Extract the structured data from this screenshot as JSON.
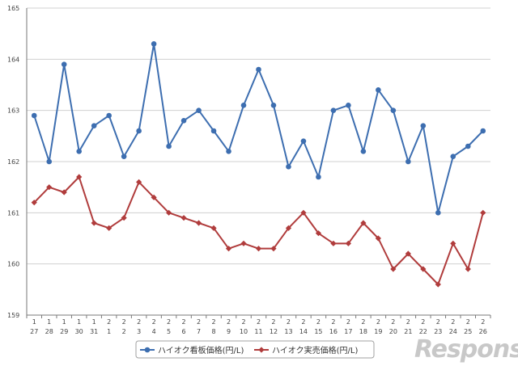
{
  "chart_data": {
    "type": "line",
    "title": "",
    "xlabel": "",
    "ylabel": "",
    "ylim": [
      159,
      165
    ],
    "yticks": [
      "159",
      "160",
      "161",
      "162",
      "163",
      "164",
      "165"
    ],
    "grid": true,
    "legend_position": "bottom-center",
    "x_month": [
      "1",
      "1",
      "1",
      "1",
      "1",
      "2",
      "2",
      "2",
      "2",
      "2",
      "2",
      "2",
      "2",
      "2",
      "2",
      "2",
      "2",
      "2",
      "2",
      "2",
      "2",
      "2",
      "2",
      "2",
      "2",
      "2",
      "2",
      "2",
      "2",
      "2",
      "2"
    ],
    "x_day": [
      "27",
      "28",
      "29",
      "30",
      "31",
      "1",
      "2",
      "3",
      "4",
      "5",
      "6",
      "7",
      "8",
      "9",
      "10",
      "11",
      "12",
      "13",
      "14",
      "15",
      "16",
      "17",
      "18",
      "19",
      "20",
      "21",
      "22",
      "23",
      "24",
      "25",
      "26"
    ],
    "series": [
      {
        "name": "ハイオク看板価格(円/L)",
        "color": "#3d6eb0",
        "marker": "circle",
        "values": [
          162.9,
          162.0,
          163.9,
          162.2,
          162.7,
          162.9,
          162.1,
          162.6,
          164.3,
          162.3,
          162.8,
          163.0,
          162.6,
          162.2,
          163.1,
          163.8,
          163.1,
          161.9,
          162.4,
          161.7,
          163.0,
          163.1,
          162.2,
          163.4,
          163.0,
          162.0,
          162.7,
          161.0,
          162.1,
          162.3,
          162.6
        ]
      },
      {
        "name": "ハイオク実売価格(円/L)",
        "color": "#b03c3c",
        "marker": "diamond",
        "values": [
          161.2,
          161.5,
          161.4,
          161.7,
          160.8,
          160.7,
          160.9,
          161.6,
          161.3,
          161.0,
          160.9,
          160.8,
          160.7,
          160.3,
          160.4,
          160.3,
          160.3,
          160.7,
          161.0,
          160.6,
          160.4,
          160.4,
          160.8,
          160.5,
          159.9,
          160.2,
          159.9,
          159.6,
          160.4,
          159.9,
          161.0
        ]
      }
    ]
  },
  "watermark": {
    "text": "Response."
  }
}
